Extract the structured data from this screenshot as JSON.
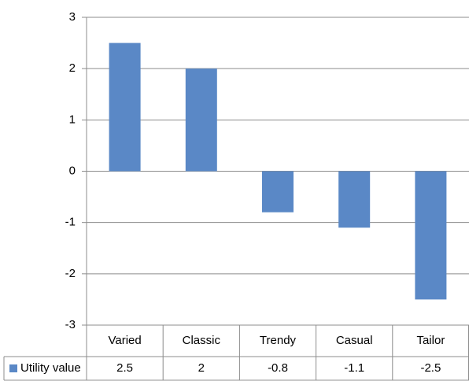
{
  "chart_data": {
    "type": "bar",
    "categories": [
      "Varied",
      "Classic",
      "Trendy",
      "Casual",
      "Tailor"
    ],
    "series": [
      {
        "name": "Utility value",
        "color": "#5a88c6",
        "values": [
          2.5,
          2,
          -0.8,
          -1.1,
          -2.5
        ]
      }
    ],
    "ylim": [
      -3,
      3
    ],
    "yticks": [
      -3,
      -2,
      -1,
      0,
      1,
      2,
      3
    ],
    "grid": true,
    "data_table": true
  }
}
